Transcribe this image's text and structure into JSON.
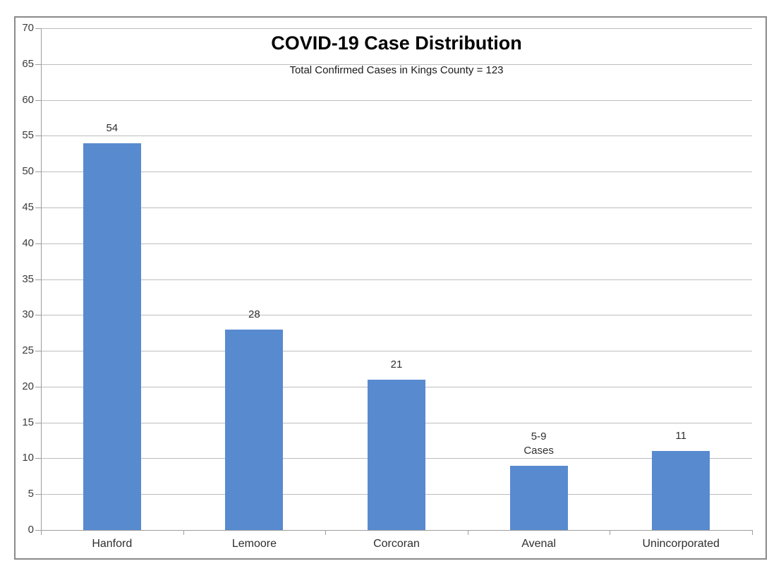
{
  "chart_data": {
    "type": "bar",
    "title": "COVID-19 Case Distribution",
    "subtitle": "Total Confirmed Cases in Kings County = 123",
    "categories": [
      "Hanford",
      "Lemoore",
      "Corcoran",
      "Avenal",
      "Unincorporated"
    ],
    "values": [
      54,
      28,
      21,
      9,
      11
    ],
    "bar_labels": [
      "54",
      "28",
      "21",
      "5-9\nCases",
      "11"
    ],
    "ylim": [
      0,
      70
    ],
    "ytick_step": 5,
    "yticks": [
      0,
      5,
      10,
      15,
      20,
      25,
      30,
      35,
      40,
      45,
      50,
      55,
      60,
      65,
      70
    ],
    "grid": true,
    "legend": "none",
    "bar_color": "#588ad0",
    "gridline_color": "#bdbdbd",
    "axis_color": "#9d9d9d",
    "frame_border_color": "#8a8a8a",
    "text_color": "#3b3b3b"
  }
}
